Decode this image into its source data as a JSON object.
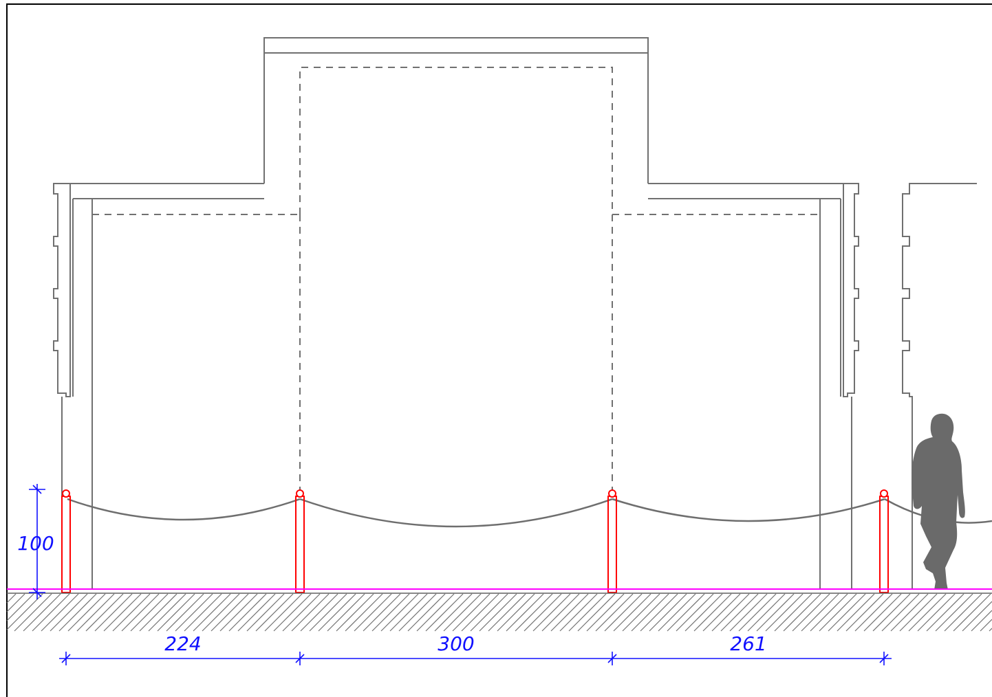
{
  "drawing": {
    "type": "cad-elevation",
    "posts": 4,
    "colors": {
      "walls": "#707070",
      "posts": "#ff0000",
      "ground_line": "#ff00ff",
      "dimensions": "#1010ff",
      "person": "#6a6a6a",
      "frame": "#000000"
    }
  },
  "dimensions": {
    "height": "100",
    "spans": [
      "224",
      "300",
      "261"
    ]
  }
}
